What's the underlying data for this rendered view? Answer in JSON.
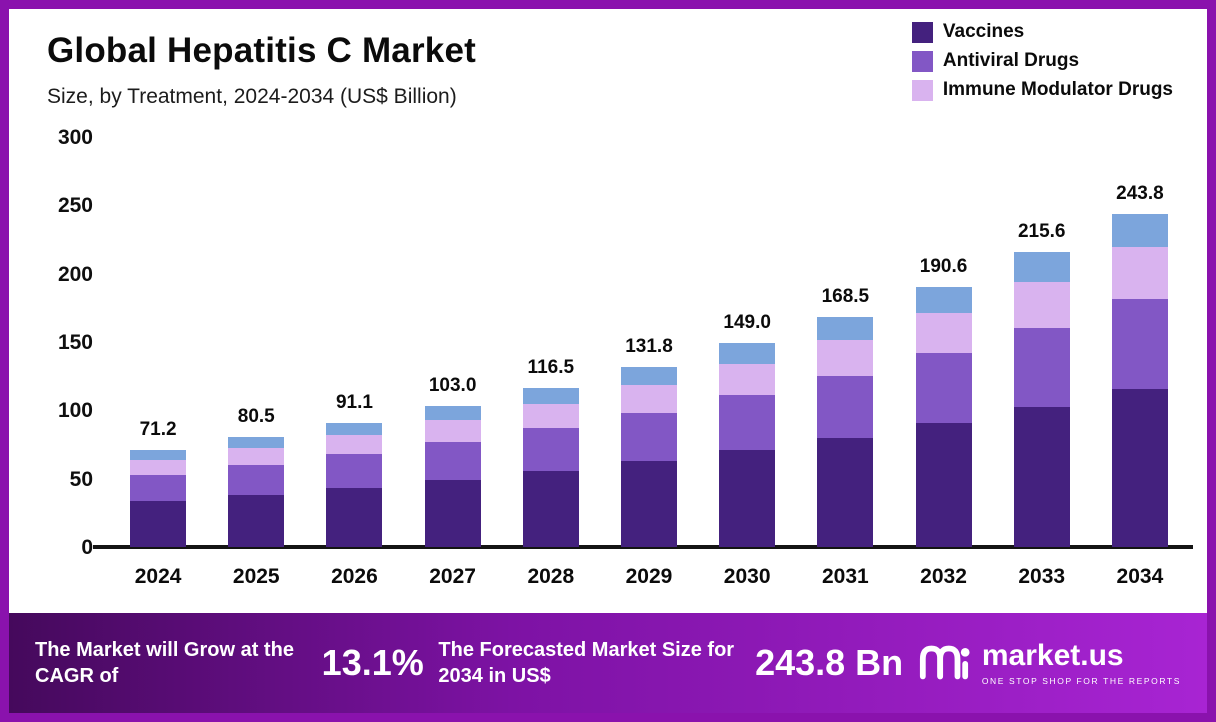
{
  "header": {
    "title": "Global Hepatitis C Market",
    "subtitle": "Size, by Treatment, 2024-2034 (US$ Billion)"
  },
  "legend": [
    {
      "label": "Vaccines",
      "color": "#44217e"
    },
    {
      "label": "Antiviral Drugs",
      "color": "#8257c5"
    },
    {
      "label": "Immune Modulator Drugs",
      "color": "#d9b3ef"
    }
  ],
  "chart_data": {
    "type": "bar",
    "stacked": true,
    "title": "Global Hepatitis C Market Size, by Treatment, 2024-2034 (US$ Billion)",
    "categories": [
      "2024",
      "2025",
      "2026",
      "2027",
      "2028",
      "2029",
      "2030",
      "2031",
      "2032",
      "2033",
      "2034"
    ],
    "totals": [
      71.2,
      80.5,
      91.1,
      103.0,
      116.5,
      131.8,
      149.0,
      168.5,
      190.6,
      215.6,
      243.8
    ],
    "series": [
      {
        "name": "Vaccines",
        "color": "#44217e",
        "values": [
          33.8,
          38.2,
          43.3,
          48.9,
          55.3,
          62.6,
          70.8,
          80.0,
          90.5,
          102.4,
          115.8
        ]
      },
      {
        "name": "Antiviral Drugs",
        "color": "#8257c5",
        "values": [
          19.2,
          21.7,
          24.6,
          27.8,
          31.5,
          35.6,
          40.2,
          45.5,
          51.5,
          58.2,
          65.8
        ]
      },
      {
        "name": "Immune Modulator Drugs",
        "color": "#d9b3ef",
        "values": [
          11.0,
          12.5,
          14.1,
          16.0,
          18.1,
          20.4,
          23.1,
          26.1,
          29.5,
          33.4,
          37.8
        ]
      },
      {
        "name": "Unlabeled top segment",
        "color": "#7ca5dc",
        "values": [
          7.2,
          8.1,
          9.1,
          10.3,
          11.6,
          13.2,
          14.9,
          16.9,
          19.1,
          21.6,
          24.4
        ]
      }
    ],
    "yticks": [
      0,
      50,
      100,
      150,
      200,
      250,
      300
    ],
    "ylim": [
      0,
      300
    ],
    "xlabel": "",
    "ylabel": "",
    "grid": false,
    "legend_position": "top-right"
  },
  "footer": {
    "left_text": "The Market will Grow at the CAGR of",
    "cagr": "13.1%",
    "mid_text": "The Forecasted Market Size for 2034 in US$",
    "forecast": "243.8 Bn",
    "brand": "market.us",
    "brand_tagline": "ONE STOP SHOP FOR THE REPORTS"
  }
}
